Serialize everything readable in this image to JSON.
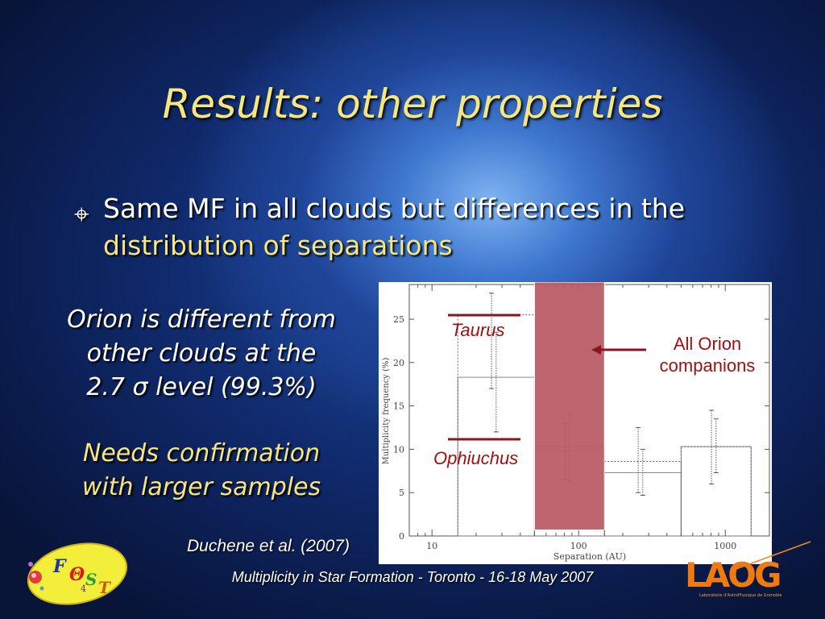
{
  "slide": {
    "title": "Results: other properties",
    "bullet": {
      "mark": "⌖",
      "text_plain": "Same MF in all clouds but differences in the",
      "text_highlight": "distribution of separations"
    },
    "left_note_1": {
      "line1": "Orion is different from",
      "line2": "other clouds at the",
      "line3": "2.7 σ level (99.3%)"
    },
    "left_note_2": {
      "line1": "Needs confirmation",
      "line2": "with larger samples"
    },
    "citation": "Duchene et al. (2007)",
    "footer": "Multiplicity in Star Formation - Toronto - 16-18 May 2007"
  },
  "logos": {
    "left_letters": [
      "F",
      "Θ",
      "S",
      "T"
    ],
    "left_subscript": "4",
    "right_text": "LAOG",
    "right_caption": "Laboratoire d'AstroPhysique de Grenoble"
  },
  "chart_data": {
    "type": "bar",
    "xlabel": "Separation (AU)",
    "ylabel": "Multiplicity frequency (%)",
    "x_scale": "log",
    "xlim": [
      7,
      2000
    ],
    "ylim": [
      0,
      29
    ],
    "x_ticks": [
      10,
      100,
      1000
    ],
    "x_tick_labels": [
      "10",
      "100",
      "1000"
    ],
    "y_ticks": [
      0,
      5,
      10,
      15,
      20,
      25
    ],
    "y_tick_labels": [
      "0",
      "5",
      "10",
      "15",
      "20",
      "25"
    ],
    "highlight_band": {
      "x0": 50,
      "x1": 150,
      "y0": 0.7,
      "y1": 29,
      "color": "#b85a64"
    },
    "series": [
      {
        "name": "Taurus",
        "style": "solid-histogram",
        "bins": [
          {
            "x0": 15,
            "x1": 50,
            "value": 18.3,
            "err_lo": 12,
            "err_hi": 23.5
          },
          {
            "x0": 50,
            "x1": 150,
            "value": 10.3,
            "err_lo": 6.3,
            "err_hi": 14.2
          },
          {
            "x0": 150,
            "x1": 500,
            "value": 7.3,
            "err_lo": 4.7,
            "err_hi": 10
          },
          {
            "x0": 500,
            "x1": 1500,
            "value": 10.3,
            "err_lo": 7.3,
            "err_hi": 13.5
          }
        ]
      },
      {
        "name": "Ophiuchus",
        "style": "dotted-histogram",
        "bins": [
          {
            "x0": 15,
            "x1": 50,
            "value": 25.5,
            "err_lo": 17,
            "err_hi": 28
          },
          {
            "x0": 50,
            "x1": 150,
            "value": 9.8,
            "err_lo": 6.5,
            "err_hi": 13
          },
          {
            "x0": 150,
            "x1": 500,
            "value": 8.6,
            "err_lo": 5,
            "err_hi": 12.5
          },
          {
            "x0": 500,
            "x1": 1500,
            "value": 10.3,
            "err_lo": 6,
            "err_hi": 14.5
          }
        ]
      }
    ],
    "annotations": [
      {
        "text": "Taurus",
        "color": "#a01010"
      },
      {
        "text": "Ophiuchus",
        "color": "#a01010"
      },
      {
        "text_line1": "All Orion",
        "text_line2": "companions",
        "color": "#a01010"
      }
    ]
  }
}
